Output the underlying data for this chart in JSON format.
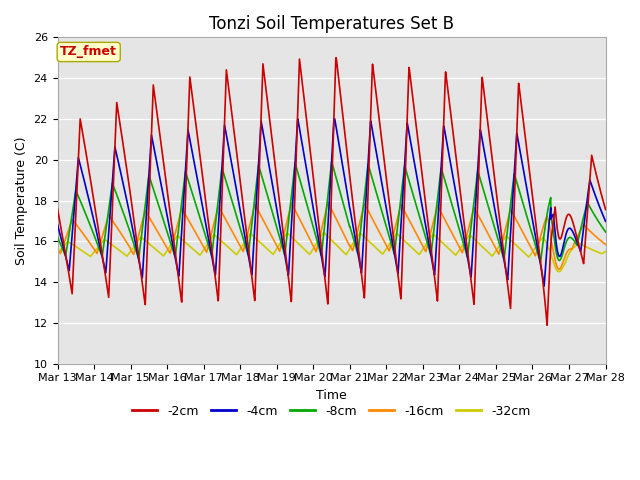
{
  "title": "Tonzi Soil Temperatures Set B",
  "xlabel": "Time",
  "ylabel": "Soil Temperature (C)",
  "ylim": [
    10,
    26
  ],
  "x_tick_labels": [
    "Mar 13",
    "Mar 14",
    "Mar 15",
    "Mar 16",
    "Mar 17",
    "Mar 18",
    "Mar 19",
    "Mar 20",
    "Mar 21",
    "Mar 22",
    "Mar 23",
    "Mar 24",
    "Mar 25",
    "Mar 26",
    "Mar 27",
    "Mar 28"
  ],
  "legend_labels": [
    "-2cm",
    "-4cm",
    "-8cm",
    "-16cm",
    "-32cm"
  ],
  "line_colors": [
    "#cc0000",
    "#0000cc",
    "#00aa00",
    "#ff8800",
    "#cccc00"
  ],
  "annotation_text": "TZ_fmet",
  "annotation_color": "#cc0000",
  "annotation_bg": "#ffffcc",
  "bg_color": "#e5e5e5",
  "title_fontsize": 12,
  "label_fontsize": 9,
  "tick_fontsize": 8,
  "legend_fontsize": 9,
  "linewidth": 1.2
}
